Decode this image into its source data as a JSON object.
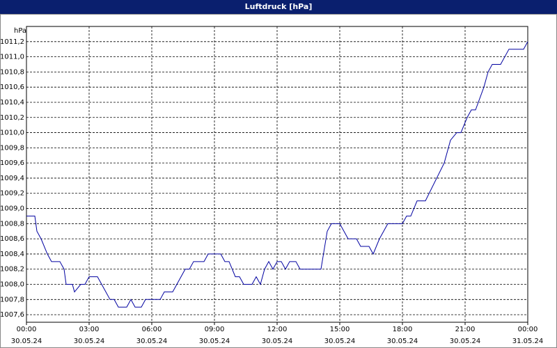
{
  "chart_data": {
    "type": "line",
    "title": "Luftdruck [hPa]",
    "ylabel": "hPa",
    "x": [
      0,
      0.4,
      0.5,
      0.7,
      1.0,
      1.2,
      1.6,
      1.8,
      1.9,
      2.2,
      2.3,
      2.6,
      2.8,
      3.0,
      3.4,
      3.6,
      3.8,
      4.0,
      4.2,
      4.4,
      4.8,
      5.0,
      5.2,
      5.5,
      5.7,
      6.2,
      6.4,
      6.6,
      7.0,
      7.2,
      7.4,
      7.6,
      7.8,
      8.0,
      8.5,
      8.7,
      9.3,
      9.5,
      9.7,
      10.0,
      10.2,
      10.4,
      10.8,
      11.0,
      11.2,
      11.4,
      11.6,
      11.8,
      12.0,
      12.2,
      12.4,
      12.6,
      12.9,
      13.1,
      13.3,
      14.1,
      14.4,
      14.6,
      15.0,
      15.4,
      15.8,
      16.0,
      16.4,
      16.6,
      16.9,
      17.1,
      17.3,
      18.0,
      18.2,
      18.4,
      18.7,
      19.1,
      20.0,
      20.3,
      20.6,
      20.8,
      21.1,
      21.3,
      21.5,
      21.9,
      22.1,
      22.3,
      22.7,
      23.1,
      23.8,
      24.0
    ],
    "series": [
      {
        "name": "Luftdruck",
        "color": "#0000a0",
        "values": [
          1008.9,
          1008.9,
          1008.7,
          1008.6,
          1008.4,
          1008.3,
          1008.3,
          1008.2,
          1008.0,
          1008.0,
          1007.9,
          1008.0,
          1008.0,
          1008.1,
          1008.1,
          1008.0,
          1007.9,
          1007.8,
          1007.8,
          1007.7,
          1007.7,
          1007.8,
          1007.7,
          1007.7,
          1007.8,
          1007.8,
          1007.8,
          1007.9,
          1007.9,
          1008.0,
          1008.1,
          1008.2,
          1008.2,
          1008.3,
          1008.3,
          1008.4,
          1008.4,
          1008.3,
          1008.3,
          1008.1,
          1008.1,
          1008.0,
          1008.0,
          1008.1,
          1008.0,
          1008.2,
          1008.3,
          1008.2,
          1008.3,
          1008.3,
          1008.2,
          1008.3,
          1008.3,
          1008.2,
          1008.2,
          1008.2,
          1008.7,
          1008.8,
          1008.8,
          1008.6,
          1008.6,
          1008.5,
          1008.5,
          1008.4,
          1008.6,
          1008.7,
          1008.8,
          1008.8,
          1008.9,
          1008.9,
          1009.1,
          1009.1,
          1009.6,
          1009.9,
          1010.0,
          1010.0,
          1010.2,
          1010.3,
          1010.3,
          1010.6,
          1010.8,
          1010.9,
          1010.9,
          1011.1,
          1011.1,
          1011.2
        ]
      }
    ],
    "xlim": [
      0,
      24
    ],
    "xticks": [
      {
        "value": 0,
        "label": "00:00\n30.05.24"
      },
      {
        "value": 3,
        "label": "03:00\n30.05.24"
      },
      {
        "value": 6,
        "label": "06:00\n30.05.24"
      },
      {
        "value": 9,
        "label": "09:00\n30.05.24"
      },
      {
        "value": 12,
        "label": "12:00\n30.05.24"
      },
      {
        "value": 15,
        "label": "15:00\n30.05.24"
      },
      {
        "value": 18,
        "label": "18:00\n30.05.24"
      },
      {
        "value": 21,
        "label": "21:00\n30.05.24"
      },
      {
        "value": 24,
        "label": "00:00\n31.05.24"
      }
    ],
    "ylim": [
      1007.5,
      1011.4
    ],
    "yticks": [
      {
        "value": 1007.6,
        "label": "1007,6"
      },
      {
        "value": 1007.8,
        "label": "1007,8"
      },
      {
        "value": 1008.0,
        "label": "1008,0"
      },
      {
        "value": 1008.2,
        "label": "1008,2"
      },
      {
        "value": 1008.4,
        "label": "1008,4"
      },
      {
        "value": 1008.6,
        "label": "1008,6"
      },
      {
        "value": 1008.8,
        "label": "1008,8"
      },
      {
        "value": 1009.0,
        "label": "1009,0"
      },
      {
        "value": 1009.2,
        "label": "1009,2"
      },
      {
        "value": 1009.4,
        "label": "1009,4"
      },
      {
        "value": 1009.6,
        "label": "1009,6"
      },
      {
        "value": 1009.8,
        "label": "1009,8"
      },
      {
        "value": 1010.0,
        "label": "1010,0"
      },
      {
        "value": 1010.2,
        "label": "1010,2"
      },
      {
        "value": 1010.4,
        "label": "1010,4"
      },
      {
        "value": 1010.6,
        "label": "1010,6"
      },
      {
        "value": 1010.8,
        "label": "1010,8"
      },
      {
        "value": 1011.0,
        "label": "1011,0"
      },
      {
        "value": 1011.2,
        "label": "1011,2"
      }
    ],
    "grid": true
  }
}
